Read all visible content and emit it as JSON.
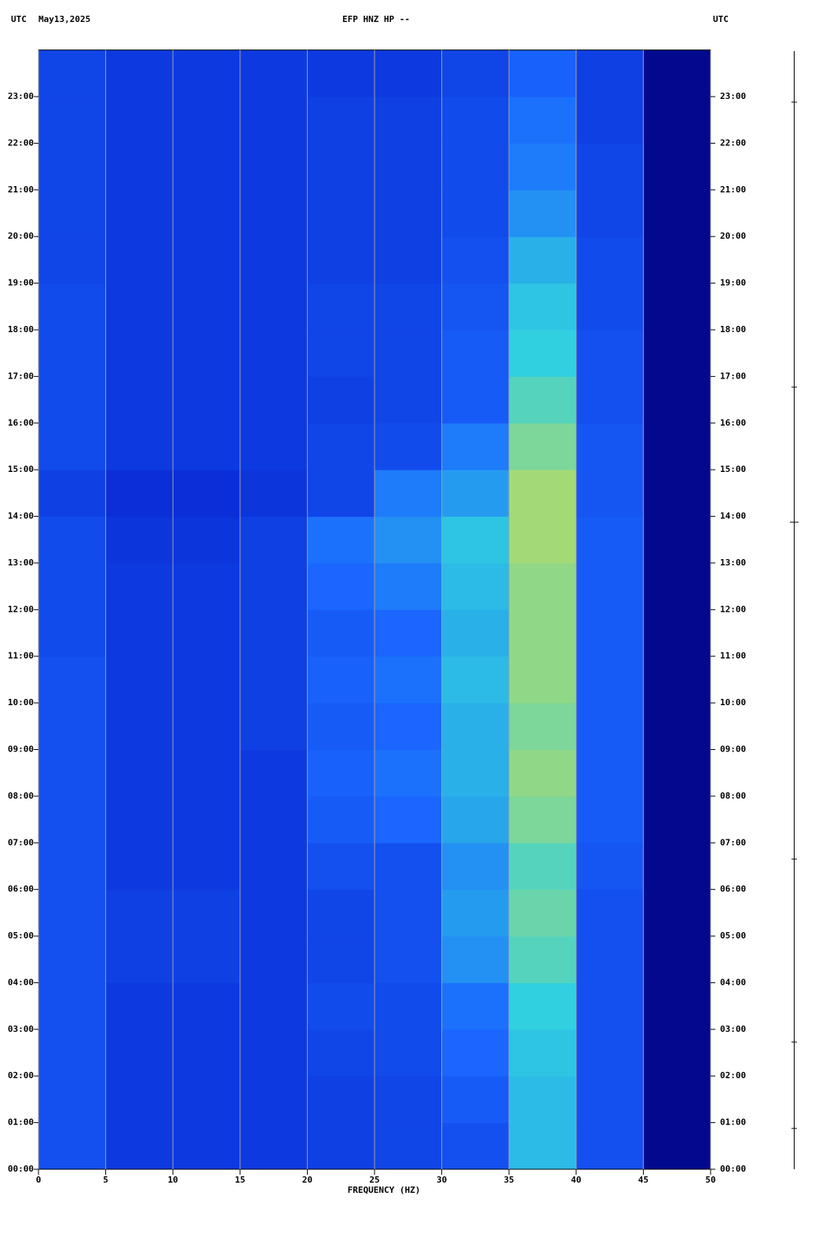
{
  "chart_data": {
    "type": "heatmap",
    "timezone_left": "UTC",
    "date": "May13,2025",
    "title": "EFP HNZ HP --",
    "timezone_right": "UTC",
    "xlabel": "FREQUENCY (HZ)",
    "xlim": [
      0,
      50
    ],
    "xticks": [
      0,
      5,
      10,
      15,
      20,
      25,
      30,
      35,
      40,
      45,
      50
    ],
    "grid": true,
    "ylim": [
      0,
      24
    ],
    "yticks": [
      {
        "value": 0,
        "label": "00:00"
      },
      {
        "value": 1,
        "label": "01:00"
      },
      {
        "value": 2,
        "label": "02:00"
      },
      {
        "value": 3,
        "label": "03:00"
      },
      {
        "value": 4,
        "label": "04:00"
      },
      {
        "value": 5,
        "label": "05:00"
      },
      {
        "value": 6,
        "label": "06:00"
      },
      {
        "value": 7,
        "label": "07:00"
      },
      {
        "value": 8,
        "label": "08:00"
      },
      {
        "value": 9,
        "label": "09:00"
      },
      {
        "value": 10,
        "label": "10:00"
      },
      {
        "value": 11,
        "label": "11:00"
      },
      {
        "value": 12,
        "label": "12:00"
      },
      {
        "value": 13,
        "label": "13:00"
      },
      {
        "value": 14,
        "label": "14:00"
      },
      {
        "value": 15,
        "label": "15:00"
      },
      {
        "value": 16,
        "label": "16:00"
      },
      {
        "value": 17,
        "label": "17:00"
      },
      {
        "value": 18,
        "label": "18:00"
      },
      {
        "value": 19,
        "label": "19:00"
      },
      {
        "value": 20,
        "label": "20:00"
      },
      {
        "value": 21,
        "label": "21:00"
      },
      {
        "value": 22,
        "label": "22:00"
      },
      {
        "value": 23,
        "label": "23:00"
      }
    ],
    "x_edges": [
      0,
      5,
      10,
      15,
      20,
      25,
      30,
      35,
      40,
      45,
      50
    ],
    "y_edges": [
      0,
      1,
      2,
      3,
      4,
      5,
      6,
      7,
      8,
      9,
      10,
      11,
      12,
      13,
      14,
      15,
      16,
      17,
      18,
      19,
      20,
      21,
      22,
      23,
      24
    ],
    "zlim": [
      0,
      4
    ],
    "colormap": [
      "#00007a",
      "#0a2fd8",
      "#1a66ff",
      "#30d0e0",
      "#f0e030"
    ],
    "z": [
      [
        1.6,
        1.2,
        1.2,
        1.2,
        1.3,
        1.4,
        1.6,
        2.8,
        1.6,
        0.2
      ],
      [
        1.6,
        1.2,
        1.2,
        1.2,
        1.3,
        1.4,
        1.8,
        2.8,
        1.6,
        0.2
      ],
      [
        1.6,
        1.2,
        1.2,
        1.2,
        1.4,
        1.5,
        2,
        2.9,
        1.6,
        0.2
      ],
      [
        1.6,
        1.2,
        1.2,
        1.2,
        1.5,
        1.5,
        2.1,
        3,
        1.6,
        0.2
      ],
      [
        1.6,
        1.3,
        1.3,
        1.2,
        1.4,
        1.6,
        2.4,
        3.2,
        1.6,
        0.2
      ],
      [
        1.6,
        1.3,
        1.3,
        1.2,
        1.4,
        1.6,
        2.5,
        3.3,
        1.6,
        0.2
      ],
      [
        1.6,
        1.2,
        1.2,
        1.2,
        1.6,
        1.6,
        2.4,
        3.2,
        1.7,
        0.2
      ],
      [
        1.6,
        1.2,
        1.2,
        1.2,
        1.8,
        2,
        2.6,
        3.4,
        1.8,
        0.2
      ],
      [
        1.6,
        1.2,
        1.2,
        1.2,
        1.9,
        2.1,
        2.7,
        3.5,
        1.8,
        0.2
      ],
      [
        1.6,
        1.2,
        1.2,
        1.3,
        1.8,
        2,
        2.7,
        3.4,
        1.8,
        0.2
      ],
      [
        1.6,
        1.2,
        1.2,
        1.3,
        1.9,
        2.1,
        2.8,
        3.5,
        1.8,
        0.2
      ],
      [
        1.5,
        1.2,
        1.2,
        1.3,
        1.8,
        2,
        2.7,
        3.5,
        1.8,
        0.2
      ],
      [
        1.5,
        1.2,
        1.2,
        1.3,
        2,
        2.2,
        2.8,
        3.5,
        1.8,
        0.2
      ],
      [
        1.5,
        1.1,
        1.1,
        1.3,
        2.1,
        2.4,
        2.9,
        3.6,
        1.8,
        0.2
      ],
      [
        1.3,
        1,
        1,
        1.1,
        1.4,
        2.2,
        2.5,
        3.6,
        1.7,
        0.2
      ],
      [
        1.5,
        1.2,
        1.2,
        1.2,
        1.4,
        1.5,
        2.2,
        3.4,
        1.7,
        0.2
      ],
      [
        1.5,
        1.2,
        1.2,
        1.2,
        1.3,
        1.4,
        1.8,
        3.2,
        1.6,
        0.2
      ],
      [
        1.5,
        1.2,
        1.2,
        1.2,
        1.4,
        1.4,
        1.8,
        3,
        1.6,
        0.2
      ],
      [
        1.5,
        1.2,
        1.2,
        1.2,
        1.4,
        1.4,
        1.7,
        2.9,
        1.5,
        0.2
      ],
      [
        1.4,
        1.2,
        1.2,
        1.2,
        1.3,
        1.3,
        1.6,
        2.7,
        1.5,
        0.2
      ],
      [
        1.4,
        1.2,
        1.2,
        1.2,
        1.3,
        1.3,
        1.5,
        2.4,
        1.4,
        0.2
      ],
      [
        1.4,
        1.2,
        1.2,
        1.2,
        1.3,
        1.3,
        1.5,
        2.2,
        1.4,
        0.2
      ],
      [
        1.4,
        1.2,
        1.2,
        1.2,
        1.3,
        1.3,
        1.5,
        2.1,
        1.3,
        0.2
      ],
      [
        1.4,
        1.2,
        1.2,
        1.2,
        1.2,
        1.2,
        1.4,
        1.9,
        1.3,
        0.2
      ]
    ]
  }
}
